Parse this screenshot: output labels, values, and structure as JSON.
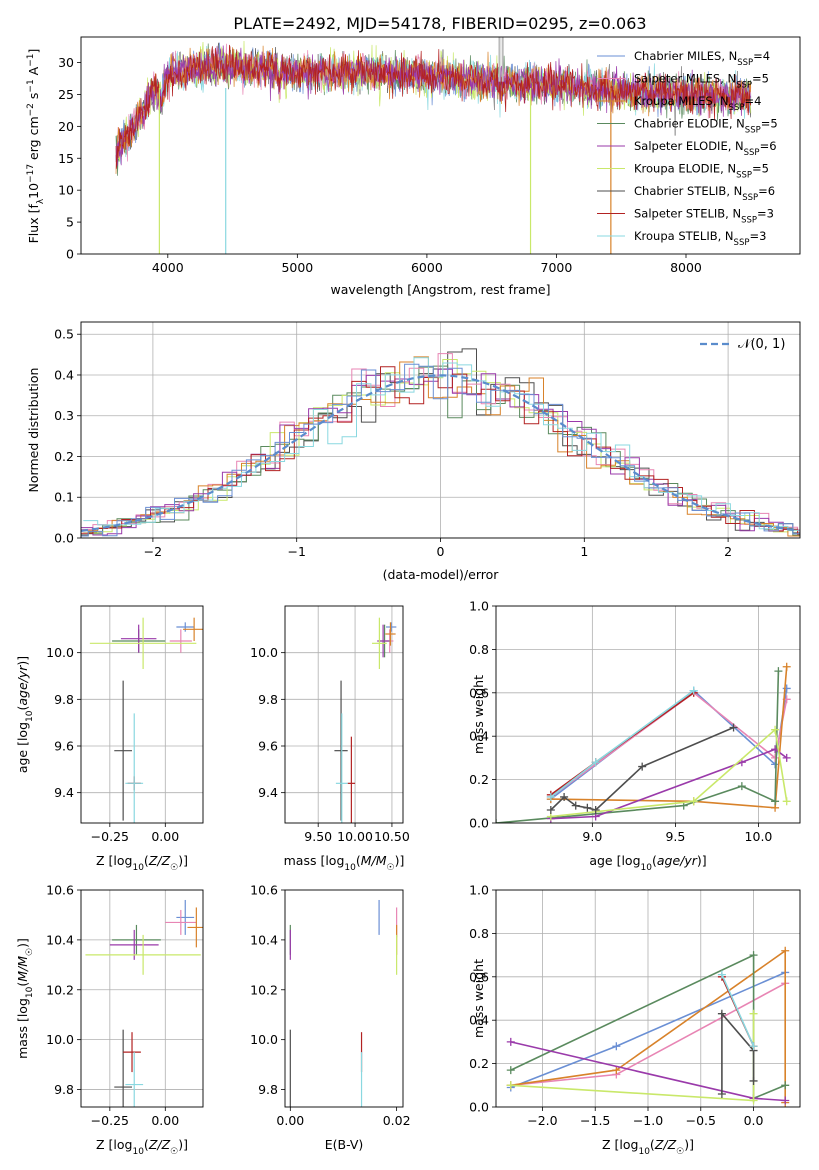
{
  "figure_title": "PLATE=2492, MJD=54178, FIBERID=0295, z=0.063",
  "models": [
    {
      "name": "Chabrier MILES, N",
      "sub": "SSP",
      "suffix": "=4",
      "color": "#6a8fd4"
    },
    {
      "name": "Salpeter MILES, N",
      "sub": "SSP",
      "suffix": "=5",
      "color": "#e885b4"
    },
    {
      "name": "Kroupa MILES, N",
      "sub": "SSP",
      "suffix": "=4",
      "color": "#d8822a"
    },
    {
      "name": "Chabrier ELODIE, N",
      "sub": "SSP",
      "suffix": "=5",
      "color": "#5a8a5e"
    },
    {
      "name": "Salpeter ELODIE, N",
      "sub": "SSP",
      "suffix": "=6",
      "color": "#9a3aaa"
    },
    {
      "name": "Kroupa ELODIE, N",
      "sub": "SSP",
      "suffix": "=5",
      "color": "#c9e86a"
    },
    {
      "name": "Chabrier STELIB, N",
      "sub": "SSP",
      "suffix": "=6",
      "color": "#4e4e4e"
    },
    {
      "name": "Salpeter STELIB, N",
      "sub": "SSP",
      "suffix": "=3",
      "color": "#b22222"
    },
    {
      "name": "Kroupa STELIB, N",
      "sub": "SSP",
      "suffix": "=3",
      "color": "#8ad8e0"
    }
  ],
  "chart_data": [
    {
      "id": "spectrum",
      "type": "line",
      "xlabel": "wavelength [Angstrom, rest frame]",
      "ylabel": "Flux [f_λ10^-17 erg cm^-2 s^-1 A^-1]",
      "xlim": [
        3330,
        8880
      ],
      "ylim": [
        0,
        34
      ],
      "xticks": [
        4000,
        5000,
        6000,
        7000,
        8000
      ],
      "yticks": [
        0,
        5,
        10,
        15,
        20,
        25,
        30
      ],
      "grid": false,
      "legend": "upper-right",
      "continuum_anchors": [
        [
          3600,
          16
        ],
        [
          3700,
          19
        ],
        [
          3800,
          22
        ],
        [
          3900,
          26
        ],
        [
          3950,
          24
        ],
        [
          4000,
          28
        ],
        [
          4200,
          29
        ],
        [
          4500,
          29.5
        ],
        [
          5000,
          28.5
        ],
        [
          5500,
          28.5
        ],
        [
          6000,
          28
        ],
        [
          6500,
          27
        ],
        [
          7000,
          26.5
        ],
        [
          7500,
          25.5
        ],
        [
          8000,
          25
        ],
        [
          8500,
          24.8
        ]
      ],
      "wavelength_range": [
        3600,
        8500
      ]
    },
    {
      "id": "residuals",
      "type": "histogram",
      "xlabel": "(data-model)/error",
      "ylabel": "Normed distribution",
      "xlim": [
        -2.5,
        2.5
      ],
      "ylim": [
        0,
        0.53
      ],
      "xticks": [
        -2,
        -1,
        0,
        1,
        2
      ],
      "yticks": [
        0,
        0.1,
        0.2,
        0.3,
        0.4,
        0.5
      ],
      "grid": true,
      "legend": "upper-right",
      "reference_label": "𝒩(0, 1)",
      "bin_width": 0.1
    },
    {
      "id": "age-vs-Z",
      "type": "errorbar",
      "xlabel": "Z [log10(Z/Z☉)]",
      "ylabel": "age [log10(age/yr)]",
      "xlim": [
        -0.38,
        0.17
      ],
      "ylim": [
        9.27,
        10.2
      ],
      "xticks": [
        -0.25,
        0.0
      ],
      "xticklabels": [
        "−0.25",
        "0.00"
      ],
      "yticks": [
        9.4,
        9.6,
        9.8,
        10.0
      ],
      "grid": true,
      "points": [
        {
          "x": 0.09,
          "y": 10.11,
          "xerr": 0.04,
          "yerr": 0.02
        },
        {
          "x": 0.07,
          "y": 10.05,
          "xerr": 0.05,
          "yerr": 0.05
        },
        {
          "x": 0.13,
          "y": 10.1,
          "xerr": 0.05,
          "yerr": 0.05
        },
        {
          "x": -0.12,
          "y": 10.05,
          "xerr": 0.12,
          "yerr": 0.05
        },
        {
          "x": -0.12,
          "y": 10.06,
          "xerr": 0.08,
          "yerr": 0.06
        },
        {
          "x": -0.1,
          "y": 10.04,
          "xerr": 0.24,
          "yerr": 0.11
        },
        {
          "x": -0.19,
          "y": 9.58,
          "xerr": 0.04,
          "yerr": 0.3
        },
        {
          "x": -0.14,
          "y": 9.44,
          "xerr": 0.03,
          "yerr": 0.03
        },
        {
          "x": -0.14,
          "y": 9.44,
          "xerr": 0.04,
          "yerr": 0.3
        }
      ]
    },
    {
      "id": "age-vs-mass",
      "type": "errorbar",
      "xlabel": "mass [log10(M/M☉)]",
      "ylabel": "",
      "xlim": [
        9.05,
        10.65
      ],
      "ylim": [
        9.27,
        10.2
      ],
      "xticks": [
        9.5,
        10.0,
        10.5
      ],
      "yticks": [
        9.4,
        9.6,
        9.8,
        10.0
      ],
      "grid": true,
      "points": [
        {
          "x": 10.49,
          "y": 10.11,
          "xerr": 0.07,
          "yerr": 0.02
        },
        {
          "x": 10.47,
          "y": 10.05,
          "xerr": 0.05,
          "yerr": 0.05
        },
        {
          "x": 10.48,
          "y": 10.08,
          "xerr": 0.07,
          "yerr": 0.05
        },
        {
          "x": 10.4,
          "y": 10.05,
          "xerr": 0.07,
          "yerr": 0.07
        },
        {
          "x": 10.38,
          "y": 10.05,
          "xerr": 0.08,
          "yerr": 0.07
        },
        {
          "x": 10.33,
          "y": 10.04,
          "xerr": 0.1,
          "yerr": 0.11
        },
        {
          "x": 9.81,
          "y": 9.58,
          "xerr": 0.09,
          "yerr": 0.3
        },
        {
          "x": 9.95,
          "y": 9.44,
          "xerr": 0.05,
          "yerr": 0.2
        },
        {
          "x": 9.82,
          "y": 9.44,
          "xerr": 0.08,
          "yerr": 0.3
        }
      ]
    },
    {
      "id": "massweight-vs-age",
      "type": "line",
      "xlabel": "age [log10(age/yr)]",
      "ylabel": "mass weight",
      "xlim": [
        8.42,
        10.25
      ],
      "ylim": [
        0,
        1.0
      ],
      "xticks": [
        9.0,
        9.5,
        10.0
      ],
      "yticks": [
        0.0,
        0.2,
        0.4,
        0.6,
        0.8,
        1.0
      ],
      "grid": true,
      "series": [
        {
          "x": [
            8.75,
            9.61,
            10.1,
            10.17
          ],
          "y": [
            0.11,
            0.61,
            0.27,
            0.62
          ]
        },
        {
          "x": [
            8.75,
            9.61,
            10.1,
            10.17
          ],
          "y": [
            0.12,
            0.6,
            0.3,
            0.57
          ]
        },
        {
          "x": [
            8.75,
            9.61,
            10.1,
            10.17
          ],
          "y": [
            0.11,
            0.1,
            0.07,
            0.72
          ]
        },
        {
          "x": [
            8.42,
            9.55,
            9.9,
            10.1,
            10.12
          ],
          "y": [
            0.0,
            0.08,
            0.17,
            0.1,
            0.7
          ]
        },
        {
          "x": [
            8.75,
            9.02,
            9.9,
            10.1,
            10.17
          ],
          "y": [
            0.02,
            0.03,
            0.28,
            0.34,
            0.3
          ]
        },
        {
          "x": [
            8.75,
            9.61,
            10.1,
            10.17
          ],
          "y": [
            0.03,
            0.1,
            0.43,
            0.1
          ]
        },
        {
          "x": [
            8.75,
            8.83,
            8.9,
            8.97,
            9.02,
            9.3,
            9.85
          ],
          "y": [
            0.06,
            0.12,
            0.08,
            0.07,
            0.06,
            0.26,
            0.44
          ]
        },
        {
          "x": [
            8.75,
            9.02,
            9.61
          ],
          "y": [
            0.13,
            0.28,
            0.6
          ]
        },
        {
          "x": [
            8.75,
            9.02,
            9.61
          ],
          "y": [
            0.12,
            0.28,
            0.61
          ]
        }
      ]
    },
    {
      "id": "mass-vs-Z",
      "type": "errorbar",
      "xlabel": "Z [log10(Z/Z☉)]",
      "ylabel": "mass [log10(M/M☉)]",
      "xlim": [
        -0.38,
        0.17
      ],
      "ylim": [
        9.73,
        10.6
      ],
      "xticks": [
        -0.25,
        0.0
      ],
      "xticklabels": [
        "−0.25",
        "0.00"
      ],
      "yticks": [
        9.8,
        10.0,
        10.2,
        10.4,
        10.6
      ],
      "grid": true,
      "points": [
        {
          "x": 0.09,
          "y": 10.49,
          "xerr": 0.04,
          "yerr": 0.07
        },
        {
          "x": 0.07,
          "y": 10.47,
          "xerr": 0.07,
          "yerr": 0.05
        },
        {
          "x": 0.14,
          "y": 10.45,
          "xerr": 0.04,
          "yerr": 0.08
        },
        {
          "x": -0.13,
          "y": 10.4,
          "xerr": 0.11,
          "yerr": 0.06
        },
        {
          "x": -0.14,
          "y": 10.38,
          "xerr": 0.11,
          "yerr": 0.06
        },
        {
          "x": -0.1,
          "y": 10.34,
          "xerr": 0.26,
          "yerr": 0.08
        },
        {
          "x": -0.19,
          "y": 9.81,
          "xerr": 0.04,
          "yerr": 0.23
        },
        {
          "x": -0.15,
          "y": 9.95,
          "xerr": 0.04,
          "yerr": 0.08
        },
        {
          "x": -0.14,
          "y": 9.82,
          "xerr": 0.04,
          "yerr": 0.13
        }
      ]
    },
    {
      "id": "mass-vs-ebv",
      "type": "errorbar",
      "xlabel": "E(B-V)",
      "ylabel": "",
      "xlim": [
        -0.001,
        0.0212
      ],
      "ylim": [
        9.73,
        10.6
      ],
      "xticks": [
        0.0,
        0.02
      ],
      "xticklabels": [
        "0.00",
        "0.02"
      ],
      "yticks": [
        9.8,
        10.0,
        10.2,
        10.4,
        10.6
      ],
      "grid": false,
      "points": [
        {
          "x": 0.0167,
          "y": 10.49,
          "xerr": 0,
          "yerr": 0.07
        },
        {
          "x": 0.02,
          "y": 10.47,
          "xerr": 0,
          "yerr": 0.06
        },
        {
          "x": 0.02,
          "y": 10.4,
          "xerr": 0,
          "yerr": 0.06
        },
        {
          "x": 0.0,
          "y": 10.4,
          "xerr": 0,
          "yerr": 0.06
        },
        {
          "x": 0.0,
          "y": 10.38,
          "xerr": 0,
          "yerr": 0.06
        },
        {
          "x": 0.02,
          "y": 10.34,
          "xerr": 0,
          "yerr": 0.08
        },
        {
          "x": 0.0,
          "y": 9.81,
          "xerr": 0,
          "yerr": 0.23
        },
        {
          "x": 0.0134,
          "y": 9.95,
          "xerr": 0,
          "yerr": 0.08
        },
        {
          "x": 0.0134,
          "y": 9.82,
          "xerr": 0,
          "yerr": 0.13
        }
      ]
    },
    {
      "id": "massweight-vs-Z",
      "type": "line",
      "xlabel": "Z [log10(Z/Z☉)]",
      "ylabel": "mass weight",
      "xlim": [
        -2.44,
        0.44
      ],
      "ylim": [
        0,
        1.0
      ],
      "xticks": [
        -2.0,
        -1.5,
        -1.0,
        -0.5,
        0.0
      ],
      "xticklabels": [
        "−2.0",
        "−1.5",
        "−1.0",
        "−0.5",
        "0.0"
      ],
      "yticks": [
        0.0,
        0.2,
        0.4,
        0.6,
        0.8,
        1.0
      ],
      "grid": true,
      "series": [
        {
          "x": [
            -2.3,
            -1.3,
            0.3
          ],
          "y": [
            0.09,
            0.28,
            0.62
          ]
        },
        {
          "x": [
            -2.3,
            -1.3,
            0.3
          ],
          "y": [
            0.1,
            0.15,
            0.57
          ]
        },
        {
          "x": [
            -2.3,
            -1.3,
            0.3,
            0.3
          ],
          "y": [
            0.1,
            0.17,
            0.72,
            0.02
          ]
        },
        {
          "x": [
            -2.3,
            0.0,
            0.0,
            0.3
          ],
          "y": [
            0.17,
            0.7,
            0.04,
            0.1
          ]
        },
        {
          "x": [
            -2.3,
            0.0,
            0.3
          ],
          "y": [
            0.3,
            0.04,
            0.03
          ]
        },
        {
          "x": [
            -2.3,
            0.0,
            0.0
          ],
          "y": [
            0.1,
            0.03,
            0.43
          ]
        },
        {
          "x": [
            -0.3,
            -0.3,
            0.0,
            0.0
          ],
          "y": [
            0.06,
            0.43,
            0.26,
            0.12
          ]
        },
        {
          "x": [
            -0.3,
            0.0
          ],
          "y": [
            0.6,
            0.28
          ]
        },
        {
          "x": [
            -0.3,
            0.0
          ],
          "y": [
            0.61,
            0.28
          ]
        }
      ]
    }
  ]
}
